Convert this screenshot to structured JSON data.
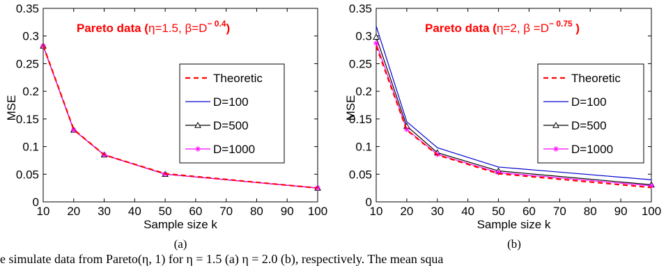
{
  "chart_data": [
    {
      "type": "line",
      "title_main": "Pareto data (",
      "title_eta": "η=1.5, ",
      "title_beta": "β=D",
      "title_exp": "− 0.4",
      "title_close": ")",
      "xlabel": "Sample size k",
      "ylabel": "MSE",
      "xlim": [
        10,
        100
      ],
      "ylim": [
        0,
        0.35
      ],
      "x_ticks": [
        "10",
        "20",
        "30",
        "40",
        "50",
        "60",
        "70",
        "80",
        "90",
        "100"
      ],
      "y_ticks": [
        "0",
        "0.05",
        "0.1",
        "0.15",
        "0.2",
        "0.25",
        "0.3",
        "0.35"
      ],
      "grid": false,
      "legend_position": "center-right",
      "x": [
        10,
        20,
        30,
        50,
        100
      ],
      "series": [
        {
          "name": "Theoretic",
          "color": "#ff0000",
          "style": "dashed",
          "marker": "none",
          "values": [
            0.283,
            0.131,
            0.085,
            0.051,
            0.025
          ]
        },
        {
          "name": "D=100",
          "color": "#0000cc",
          "style": "solid",
          "marker": "none",
          "values": [
            0.282,
            0.13,
            0.085,
            0.05,
            0.025
          ]
        },
        {
          "name": "D=500",
          "color": "#000000",
          "style": "solid",
          "marker": "triangle",
          "values": [
            0.282,
            0.13,
            0.085,
            0.05,
            0.025
          ]
        },
        {
          "name": "D=1000",
          "color": "#ff00ff",
          "style": "solid",
          "marker": "star",
          "values": [
            0.282,
            0.13,
            0.085,
            0.05,
            0.025
          ]
        }
      ],
      "caption": "(a)"
    },
    {
      "type": "line",
      "title_main": "Pareto data (",
      "title_eta": "η=2, ",
      "title_beta": "β =D",
      "title_exp": "− 0.75",
      "title_close": " )",
      "xlabel": "Sample size k",
      "ylabel": "MSE",
      "xlim": [
        10,
        100
      ],
      "ylim": [
        0,
        0.35
      ],
      "x_ticks": [
        "10",
        "20",
        "30",
        "40",
        "50",
        "60",
        "70",
        "80",
        "90",
        "100"
      ],
      "y_ticks": [
        "0",
        "0.05",
        "0.1",
        "0.15",
        "0.2",
        "0.25",
        "0.3",
        "0.35"
      ],
      "grid": false,
      "legend_position": "center-right",
      "x": [
        10,
        20,
        30,
        50,
        100
      ],
      "series": [
        {
          "name": "Theoretic",
          "color": "#ff0000",
          "style": "dashed",
          "marker": "none",
          "values": [
            0.282,
            0.13,
            0.085,
            0.051,
            0.026
          ]
        },
        {
          "name": "D=100",
          "color": "#0000cc",
          "style": "solid",
          "marker": "none",
          "values": [
            0.318,
            0.145,
            0.098,
            0.063,
            0.04
          ]
        },
        {
          "name": "D=500",
          "color": "#000000",
          "style": "solid",
          "marker": "triangle",
          "values": [
            0.298,
            0.137,
            0.089,
            0.056,
            0.031
          ]
        },
        {
          "name": "D=1000",
          "color": "#ff00ff",
          "style": "solid",
          "marker": "star",
          "values": [
            0.287,
            0.131,
            0.086,
            0.053,
            0.029
          ]
        }
      ],
      "caption": "(b)"
    }
  ],
  "caption_line": "e simulate data from Pareto(η, 1) for η = 1.5 (a) η = 2.0 (b), respectively. The mean squa"
}
